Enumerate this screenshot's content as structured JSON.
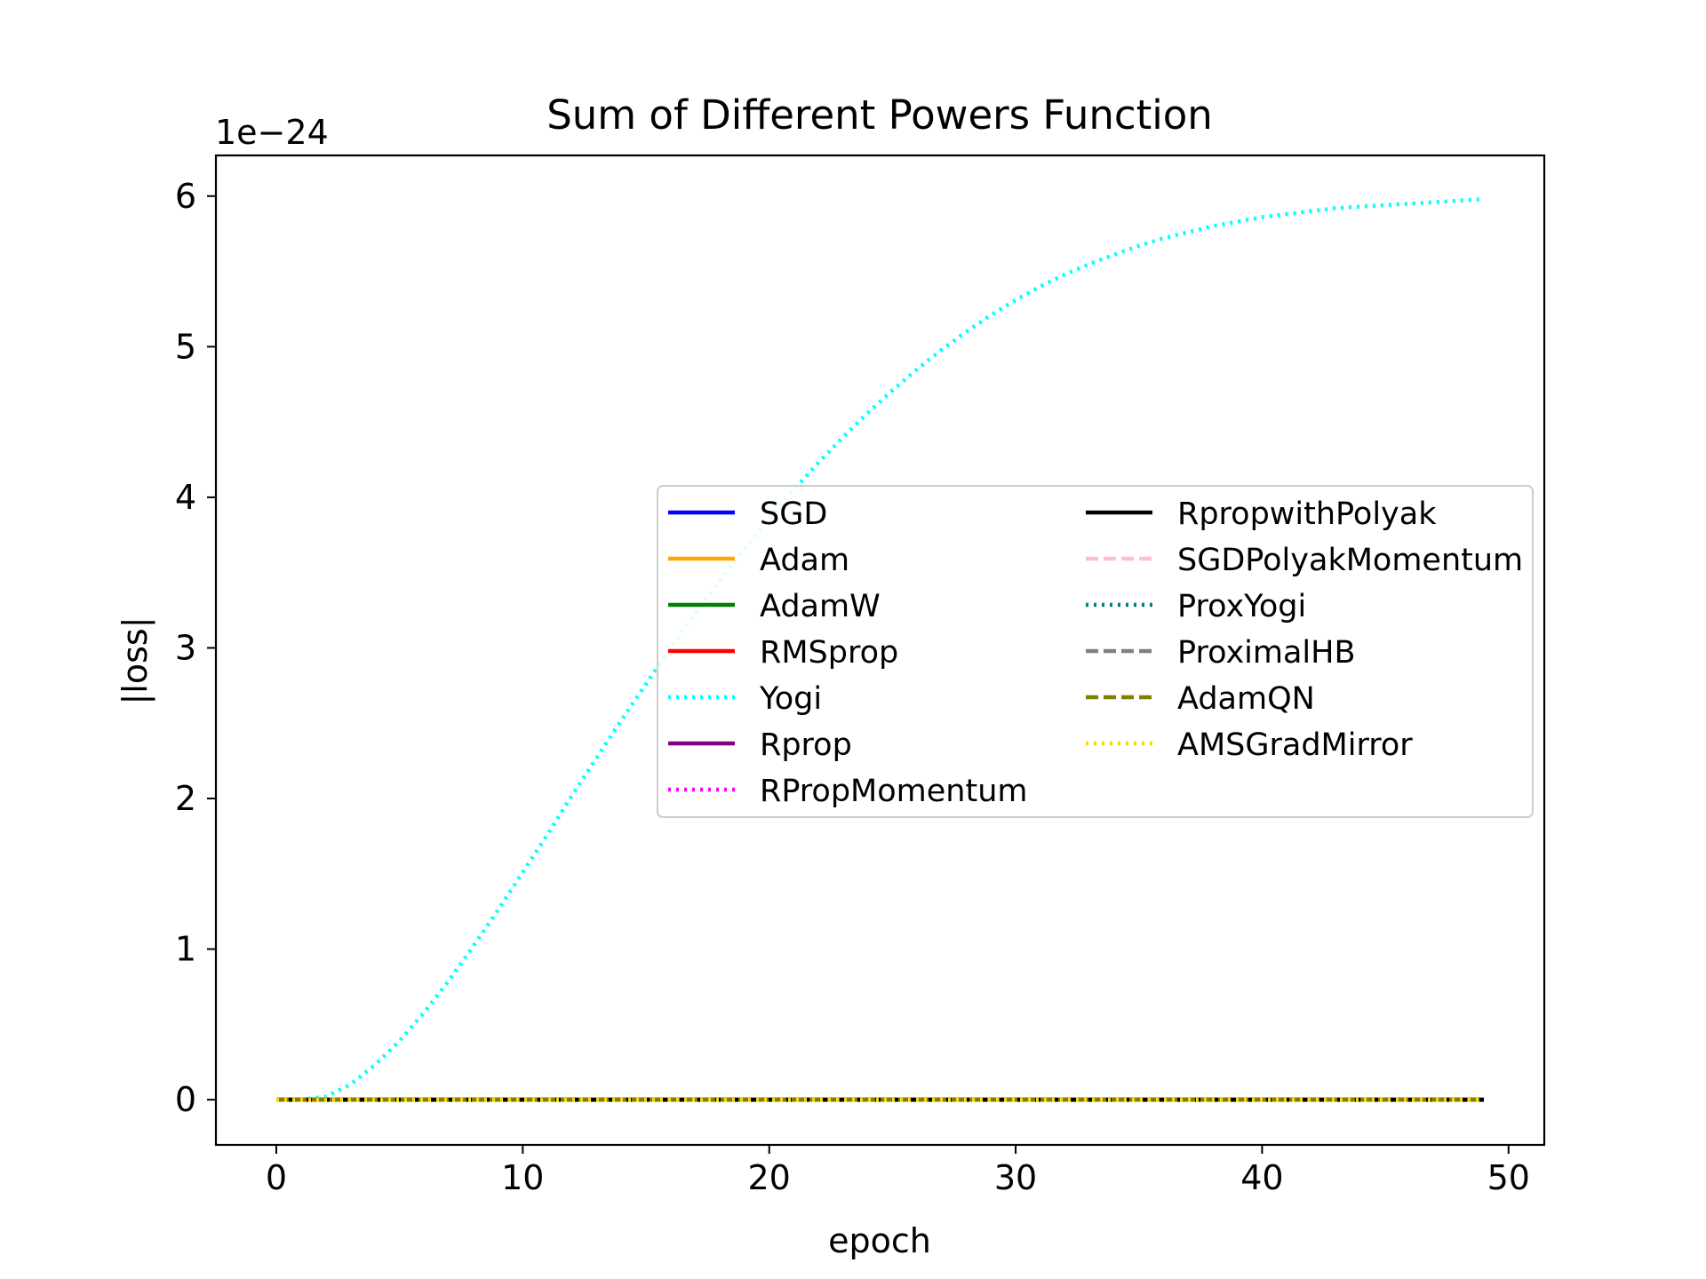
{
  "chart_data": {
    "type": "line",
    "title": "Sum of Different Powers Function",
    "xlabel": "epoch",
    "ylabel": "|loss|",
    "offset_label": "1e−24",
    "xlim": [
      -2.45,
      51.45
    ],
    "ylim": [
      -0.3,
      6.27
    ],
    "xticks": [
      0,
      10,
      20,
      30,
      40,
      50
    ],
    "xtick_labels": [
      "0",
      "10",
      "20",
      "30",
      "40",
      "50"
    ],
    "yticks": [
      0,
      1,
      2,
      3,
      4,
      5,
      6
    ],
    "ytick_labels": [
      "0",
      "1",
      "2",
      "3",
      "4",
      "5",
      "6"
    ],
    "grid": false,
    "legend_position": "center-right",
    "legend_columns": 2,
    "x": [
      0,
      1,
      2,
      3,
      4,
      5,
      6,
      7,
      8,
      9,
      10,
      11,
      12,
      13,
      14,
      15,
      16,
      17,
      18,
      19,
      20,
      21,
      22,
      23,
      24,
      25,
      26,
      27,
      28,
      29,
      30,
      31,
      32,
      33,
      34,
      35,
      36,
      37,
      38,
      39,
      40,
      41,
      42,
      43,
      44,
      45,
      46,
      47,
      48,
      49
    ],
    "series": [
      {
        "name": "SGD",
        "color": "#0000ff",
        "dash": "solid",
        "values": "zeros"
      },
      {
        "name": "Adam",
        "color": "#ffa500",
        "dash": "solid",
        "values": "zeros"
      },
      {
        "name": "AdamW",
        "color": "#008000",
        "dash": "solid",
        "values": "zeros"
      },
      {
        "name": "RMSprop",
        "color": "#ff0000",
        "dash": "solid",
        "values": "zeros"
      },
      {
        "name": "Yogi",
        "color": "#00ffff",
        "dash": "dotted",
        "values": [
          0,
          0,
          0.02,
          0.1,
          0.23,
          0.39,
          0.58,
          0.79,
          1.02,
          1.26,
          1.51,
          1.76,
          2.02,
          2.27,
          2.52,
          2.76,
          3.0,
          3.23,
          3.45,
          3.66,
          3.86,
          4.05,
          4.23,
          4.4,
          4.56,
          4.71,
          4.85,
          4.98,
          5.1,
          5.21,
          5.31,
          5.4,
          5.48,
          5.55,
          5.61,
          5.67,
          5.72,
          5.76,
          5.8,
          5.83,
          5.86,
          5.88,
          5.9,
          5.92,
          5.93,
          5.94,
          5.95,
          5.96,
          5.97,
          5.98
        ]
      },
      {
        "name": "Rprop",
        "color": "#800080",
        "dash": "solid",
        "values": "zeros"
      },
      {
        "name": "RPropMomentum",
        "color": "#ff00ff",
        "dash": "dotted",
        "values": "zeros"
      },
      {
        "name": "RpropwithPolyak",
        "color": "#000000",
        "dash": "solid",
        "values": "zeros"
      },
      {
        "name": "SGDPolyakMomentum",
        "color": "#ffc0cb",
        "dash": "dashed",
        "values": "zeros"
      },
      {
        "name": "ProxYogi",
        "color": "#008080",
        "dash": "dotted",
        "values": "zeros"
      },
      {
        "name": "ProximalHB",
        "color": "#808080",
        "dash": "dashed",
        "values": "zeros"
      },
      {
        "name": "AdamQN",
        "color": "#808000",
        "dash": "dashed",
        "values": "zeros"
      },
      {
        "name": "AMSGradMirror",
        "color": "#ffd700",
        "dash": "dotted",
        "values": "zeros"
      }
    ]
  }
}
